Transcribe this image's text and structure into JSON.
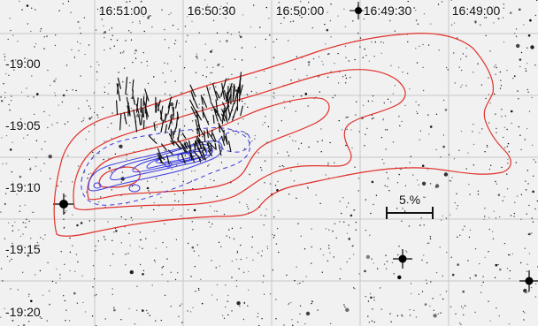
{
  "ra_labels": [
    "16:51:00",
    "16:50:30",
    "16:50:00",
    "16:49:30",
    "16:49:00"
  ],
  "dec_labels": [
    "-19:00",
    "-19:05",
    "-19:10",
    "-19:15",
    "-19:20"
  ],
  "scale_bar": {
    "label": "5 %"
  },
  "colors": {
    "red_contours": "#e0302a",
    "blue_contours": "#3a3ae0",
    "polarization_vectors": "#111111",
    "grid": "#c8c8c8",
    "sky_background": "#f1f1f1"
  }
}
